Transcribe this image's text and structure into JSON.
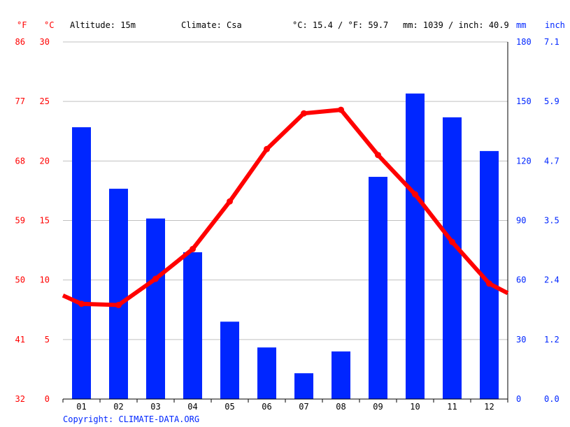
{
  "header": {
    "unit_f": "°F",
    "unit_c": "°C",
    "altitude": "Altitude: 15m",
    "climate": "Climate: Csa",
    "temp_avg": "°C: 15.4 / °F: 59.7",
    "precip_total": "mm: 1039 / inch: 40.9",
    "unit_mm": "mm",
    "unit_inch": "inch"
  },
  "copyright": "Copyright: CLIMATE-DATA.ORG",
  "colors": {
    "temperature": "#ff0000",
    "precipitation": "#0026ff",
    "grid": "#c0c0c0",
    "axis": "#000000"
  },
  "chart_data": {
    "type": "bar+line",
    "categories": [
      "01",
      "02",
      "03",
      "04",
      "05",
      "06",
      "07",
      "08",
      "09",
      "10",
      "11",
      "12"
    ],
    "series": [
      {
        "type": "bar",
        "axis": "right",
        "unit": "mm",
        "values": [
          137,
          106,
          91,
          74,
          39,
          26,
          13,
          24,
          112,
          154,
          142,
          125
        ]
      },
      {
        "type": "line",
        "axis": "left",
        "unit": "°C",
        "values": [
          8.0,
          7.9,
          10.1,
          12.6,
          16.6,
          21.0,
          24.0,
          24.3,
          20.5,
          17.2,
          13.2,
          9.7
        ],
        "edge_start": 8.7,
        "edge_end": 8.9
      }
    ],
    "ylim_left": [
      0,
      30
    ],
    "yticks_left_c": [
      "0",
      "5",
      "10",
      "15",
      "20",
      "25",
      "30"
    ],
    "yticks_left_f": [
      "32",
      "41",
      "50",
      "59",
      "68",
      "77",
      "86"
    ],
    "ylim_right": [
      0,
      180
    ],
    "yticks_right_mm": [
      "0",
      "30",
      "60",
      "90",
      "120",
      "150",
      "180"
    ],
    "yticks_right_inch": [
      "0.0",
      "1.2",
      "2.4",
      "3.5",
      "4.7",
      "5.9",
      "7.1"
    ],
    "grid": true
  }
}
